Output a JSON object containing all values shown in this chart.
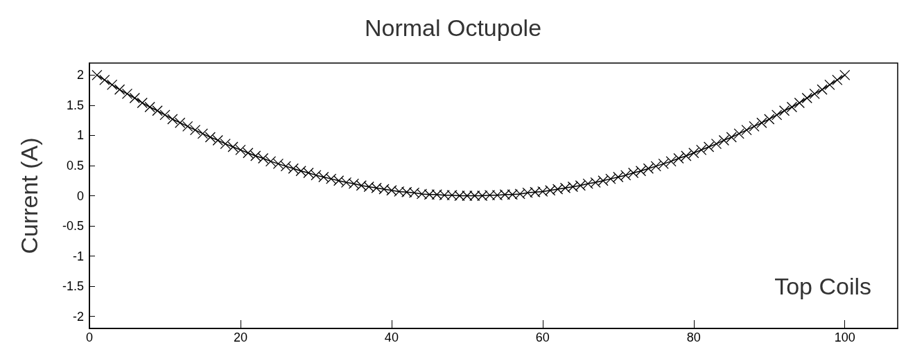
{
  "chart_data": {
    "type": "line",
    "title": "Normal Octupole",
    "ylabel": "Current (A)",
    "annotations": [
      "Top Coils"
    ],
    "x": [
      1,
      2,
      3,
      4,
      5,
      6,
      7,
      8,
      9,
      10,
      11,
      12,
      13,
      14,
      15,
      16,
      17,
      18,
      19,
      20,
      21,
      22,
      23,
      24,
      25,
      26,
      27,
      28,
      29,
      30,
      31,
      32,
      33,
      34,
      35,
      36,
      37,
      38,
      39,
      40,
      41,
      42,
      43,
      44,
      45,
      46,
      47,
      48,
      49,
      50,
      51,
      52,
      53,
      54,
      55,
      56,
      57,
      58,
      59,
      60,
      61,
      62,
      63,
      64,
      65,
      66,
      67,
      68,
      69,
      70,
      71,
      72,
      73,
      74,
      75,
      76,
      77,
      78,
      79,
      80,
      81,
      82,
      83,
      84,
      85,
      86,
      87,
      88,
      89,
      90,
      91,
      92,
      93,
      94,
      95,
      96,
      97,
      98,
      99,
      100
    ],
    "series": [
      {
        "color": "#000000",
        "values": [
          2.0,
          1.92,
          1.84,
          1.76,
          1.69,
          1.62,
          1.54,
          1.47,
          1.41,
          1.34,
          1.27,
          1.21,
          1.15,
          1.09,
          1.03,
          0.97,
          0.92,
          0.86,
          0.81,
          0.76,
          0.71,
          0.66,
          0.62,
          0.57,
          0.53,
          0.49,
          0.45,
          0.41,
          0.38,
          0.34,
          0.31,
          0.28,
          0.25,
          0.22,
          0.2,
          0.17,
          0.15,
          0.13,
          0.11,
          0.09,
          0.07,
          0.06,
          0.05,
          0.03,
          0.02,
          0.02,
          0.01,
          0.01,
          0,
          0,
          0,
          0,
          0.01,
          0.01,
          0.02,
          0.02,
          0.03,
          0.05,
          0.06,
          0.07,
          0.09,
          0.11,
          0.13,
          0.15,
          0.17,
          0.2,
          0.22,
          0.25,
          0.28,
          0.31,
          0.34,
          0.38,
          0.41,
          0.45,
          0.49,
          0.53,
          0.57,
          0.62,
          0.66,
          0.71,
          0.76,
          0.81,
          0.86,
          0.92,
          0.97,
          1.03,
          1.09,
          1.15,
          1.21,
          1.27,
          1.34,
          1.41,
          1.47,
          1.54,
          1.62,
          1.69,
          1.76,
          1.84,
          1.92,
          2.0
        ]
      }
    ],
    "xlim": [
      0,
      107
    ],
    "xticks": [
      0,
      20,
      40,
      60,
      80,
      100
    ],
    "ylim": [
      -2.2,
      2.2
    ],
    "yticks": [
      -2,
      -1.5,
      -1,
      -0.5,
      0,
      0.5,
      1,
      1.5,
      2
    ],
    "grid": false,
    "marker": "cross",
    "line_style": "solid"
  }
}
